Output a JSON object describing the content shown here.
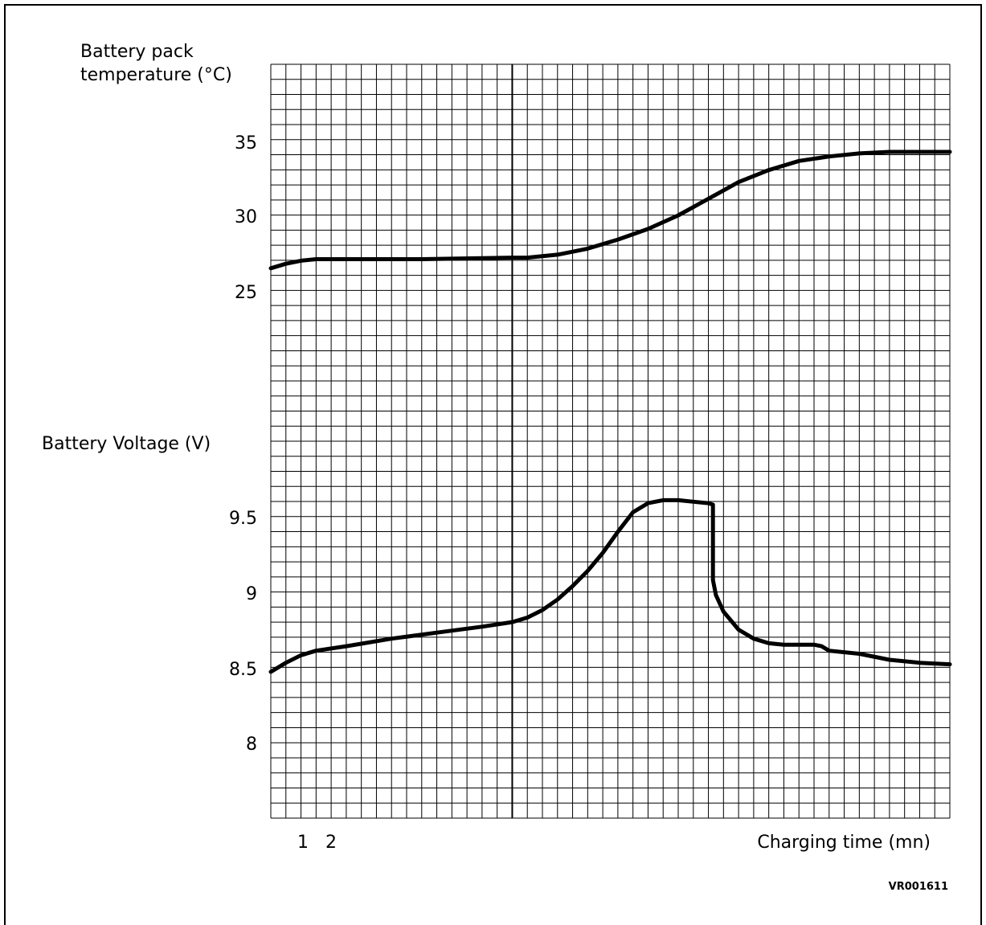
{
  "chart_data": {
    "type": "line",
    "title": "",
    "figure_code": "VR001611",
    "xlabel": "Charging time (mn)",
    "x_tick_labels": [
      "1",
      "2"
    ],
    "x_range": [
      0,
      45
    ],
    "grid": true,
    "top_axis": {
      "label_line1": "Battery pack",
      "label_line2": "temperature (°C)",
      "ticks": [
        "35",
        "30",
        "25"
      ],
      "tick_values": [
        35,
        30,
        25
      ],
      "ylim": [
        20,
        39.7
      ]
    },
    "bottom_axis": {
      "label": "Battery Voltage (V)",
      "ticks": [
        "9.5",
        "9",
        "8.5",
        "8"
      ],
      "tick_values": [
        9.5,
        9.0,
        8.5,
        8.0
      ],
      "ylim": [
        7.5,
        10.3
      ]
    },
    "marker_x": 16,
    "series": [
      {
        "axis": "top",
        "x": [
          0,
          1,
          2,
          3,
          5,
          10,
          16,
          17,
          19,
          21,
          23,
          25,
          27,
          29,
          31,
          33,
          35,
          37,
          39,
          41,
          43,
          45
        ],
        "values": [
          26.5,
          26.8,
          27.0,
          27.1,
          27.1,
          27.1,
          27.2,
          27.2,
          27.4,
          27.8,
          28.4,
          29.1,
          30.0,
          31.1,
          32.2,
          33.0,
          33.6,
          33.9,
          34.1,
          34.2,
          34.2,
          34.2
        ]
      },
      {
        "axis": "bottom",
        "x": [
          0,
          1,
          2,
          3,
          5,
          8,
          11,
          14,
          16,
          17,
          18,
          19,
          20,
          21,
          22,
          23,
          24,
          25,
          26,
          27,
          28,
          29,
          29.3,
          29.3,
          29.5,
          30,
          31,
          32,
          33,
          34,
          35,
          36,
          36.5,
          37,
          39,
          41,
          43,
          45
        ],
        "values": [
          8.47,
          8.53,
          8.58,
          8.61,
          8.64,
          8.69,
          8.73,
          8.77,
          8.8,
          8.83,
          8.88,
          8.95,
          9.04,
          9.14,
          9.26,
          9.4,
          9.53,
          9.59,
          9.61,
          9.61,
          9.6,
          9.59,
          9.58,
          9.08,
          8.98,
          8.87,
          8.75,
          8.69,
          8.66,
          8.65,
          8.65,
          8.65,
          8.64,
          8.61,
          8.59,
          8.55,
          8.53,
          8.52
        ]
      }
    ]
  }
}
